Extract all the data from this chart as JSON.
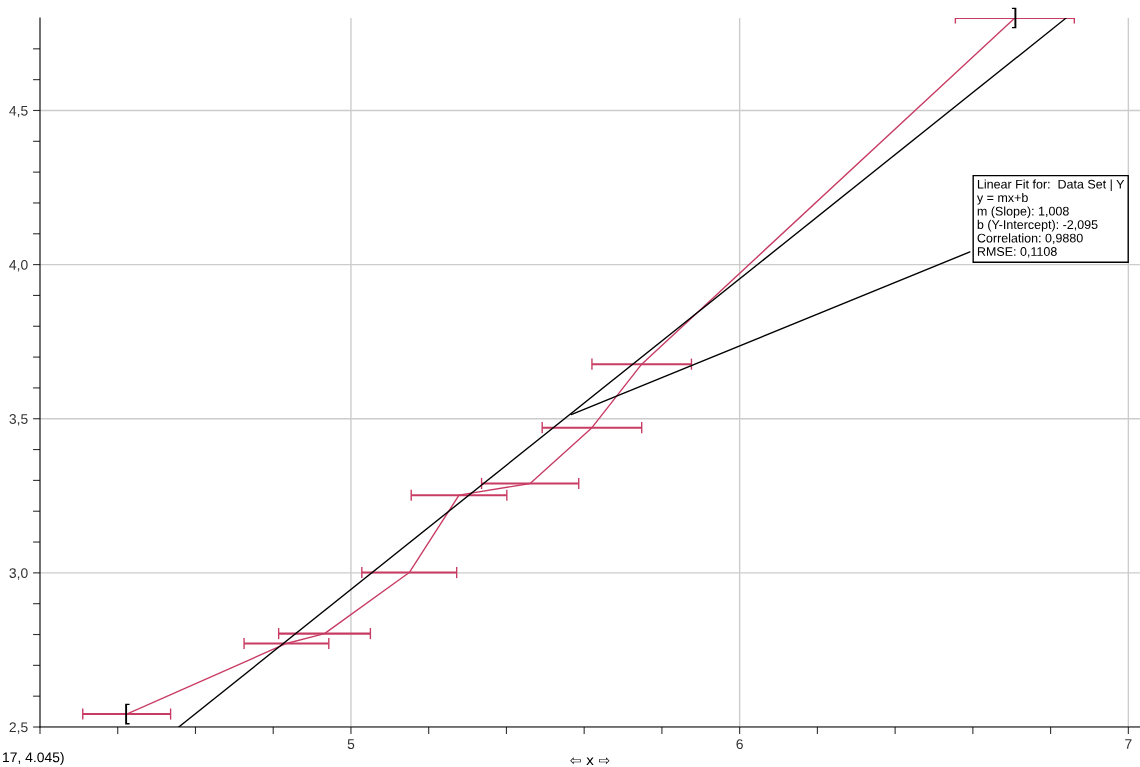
{
  "chart_data": {
    "type": "line",
    "xlabel": "⇦ x ⇨",
    "xlim": [
      4.2,
      7.03
    ],
    "ylim": [
      2.5,
      4.8
    ],
    "xticks": [
      {
        "value": 4.2,
        "label": null
      },
      {
        "value": 4.4,
        "label": null
      },
      {
        "value": 4.6,
        "label": null
      },
      {
        "value": 4.8,
        "label": null
      },
      5,
      {
        "value": 5.2,
        "label": null
      },
      {
        "value": 5.4,
        "label": null
      },
      {
        "value": 5.6,
        "label": null
      },
      {
        "value": 5.8,
        "label": null
      },
      6,
      {
        "value": 6.2,
        "label": null
      },
      {
        "value": 6.4,
        "label": null
      },
      {
        "value": 6.6,
        "label": null
      },
      {
        "value": 6.8,
        "label": null
      },
      7
    ],
    "yticks": [
      {
        "value": 2.5,
        "label": "2,5"
      },
      {
        "value": 2.6,
        "label": null
      },
      {
        "value": 2.7,
        "label": null
      },
      {
        "value": 2.8,
        "label": null
      },
      {
        "value": 2.9,
        "label": null
      },
      {
        "value": 3.0,
        "label": "3,0"
      },
      {
        "value": 3.1,
        "label": null
      },
      {
        "value": 3.2,
        "label": null
      },
      {
        "value": 3.3,
        "label": null
      },
      {
        "value": 3.4,
        "label": null
      },
      {
        "value": 3.5,
        "label": "3,5"
      },
      {
        "value": 3.6,
        "label": null
      },
      {
        "value": 3.7,
        "label": null
      },
      {
        "value": 3.8,
        "label": null
      },
      {
        "value": 3.9,
        "label": null
      },
      {
        "value": 4.0,
        "label": "4,0"
      },
      {
        "value": 4.1,
        "label": null
      },
      {
        "value": 4.2,
        "label": null
      },
      {
        "value": 4.3,
        "label": null
      },
      {
        "value": 4.4,
        "label": null
      },
      {
        "value": 4.5,
        "label": "4,5"
      },
      {
        "value": 4.6,
        "label": null
      },
      {
        "value": 4.7,
        "label": null
      }
    ],
    "grid": true,
    "legend": false,
    "marker": "none",
    "line_style": "solid",
    "series": [
      {
        "color": "#c83c64",
        "x": [
          4.423,
          4.834,
          4.932,
          5.15,
          5.278,
          5.461,
          5.62,
          5.748,
          6.708
        ],
        "values": [
          2.542,
          2.771,
          2.803,
          3.001,
          3.252,
          3.29,
          3.471,
          3.677,
          4.8
        ],
        "xerrors": [
          0.113,
          0.109,
          0.118,
          0.122,
          0.123,
          0.125,
          0.128,
          0.128,
          0.153
        ]
      },
      {
        "color": "#000000",
        "x": [
          4.557,
          6.84
        ],
        "values": [
          2.5,
          4.8
        ]
      }
    ],
    "annotations": [
      {
        "text": "Linear Fit for:  Data Set | Y\ny = mx+b\nm (Slope): 1,008\nb (Y-Intercept): -2,095\nCorrelation: 0,9880\nRMSE: 0,1108",
        "x": 5.56,
        "y": 3.51
      },
      {
        "text": "[",
        "x": 4.423,
        "y": 2.542
      },
      {
        "text": "]",
        "x": 6.708,
        "y": 4.8
      },
      "17, 4.045)"
    ]
  }
}
